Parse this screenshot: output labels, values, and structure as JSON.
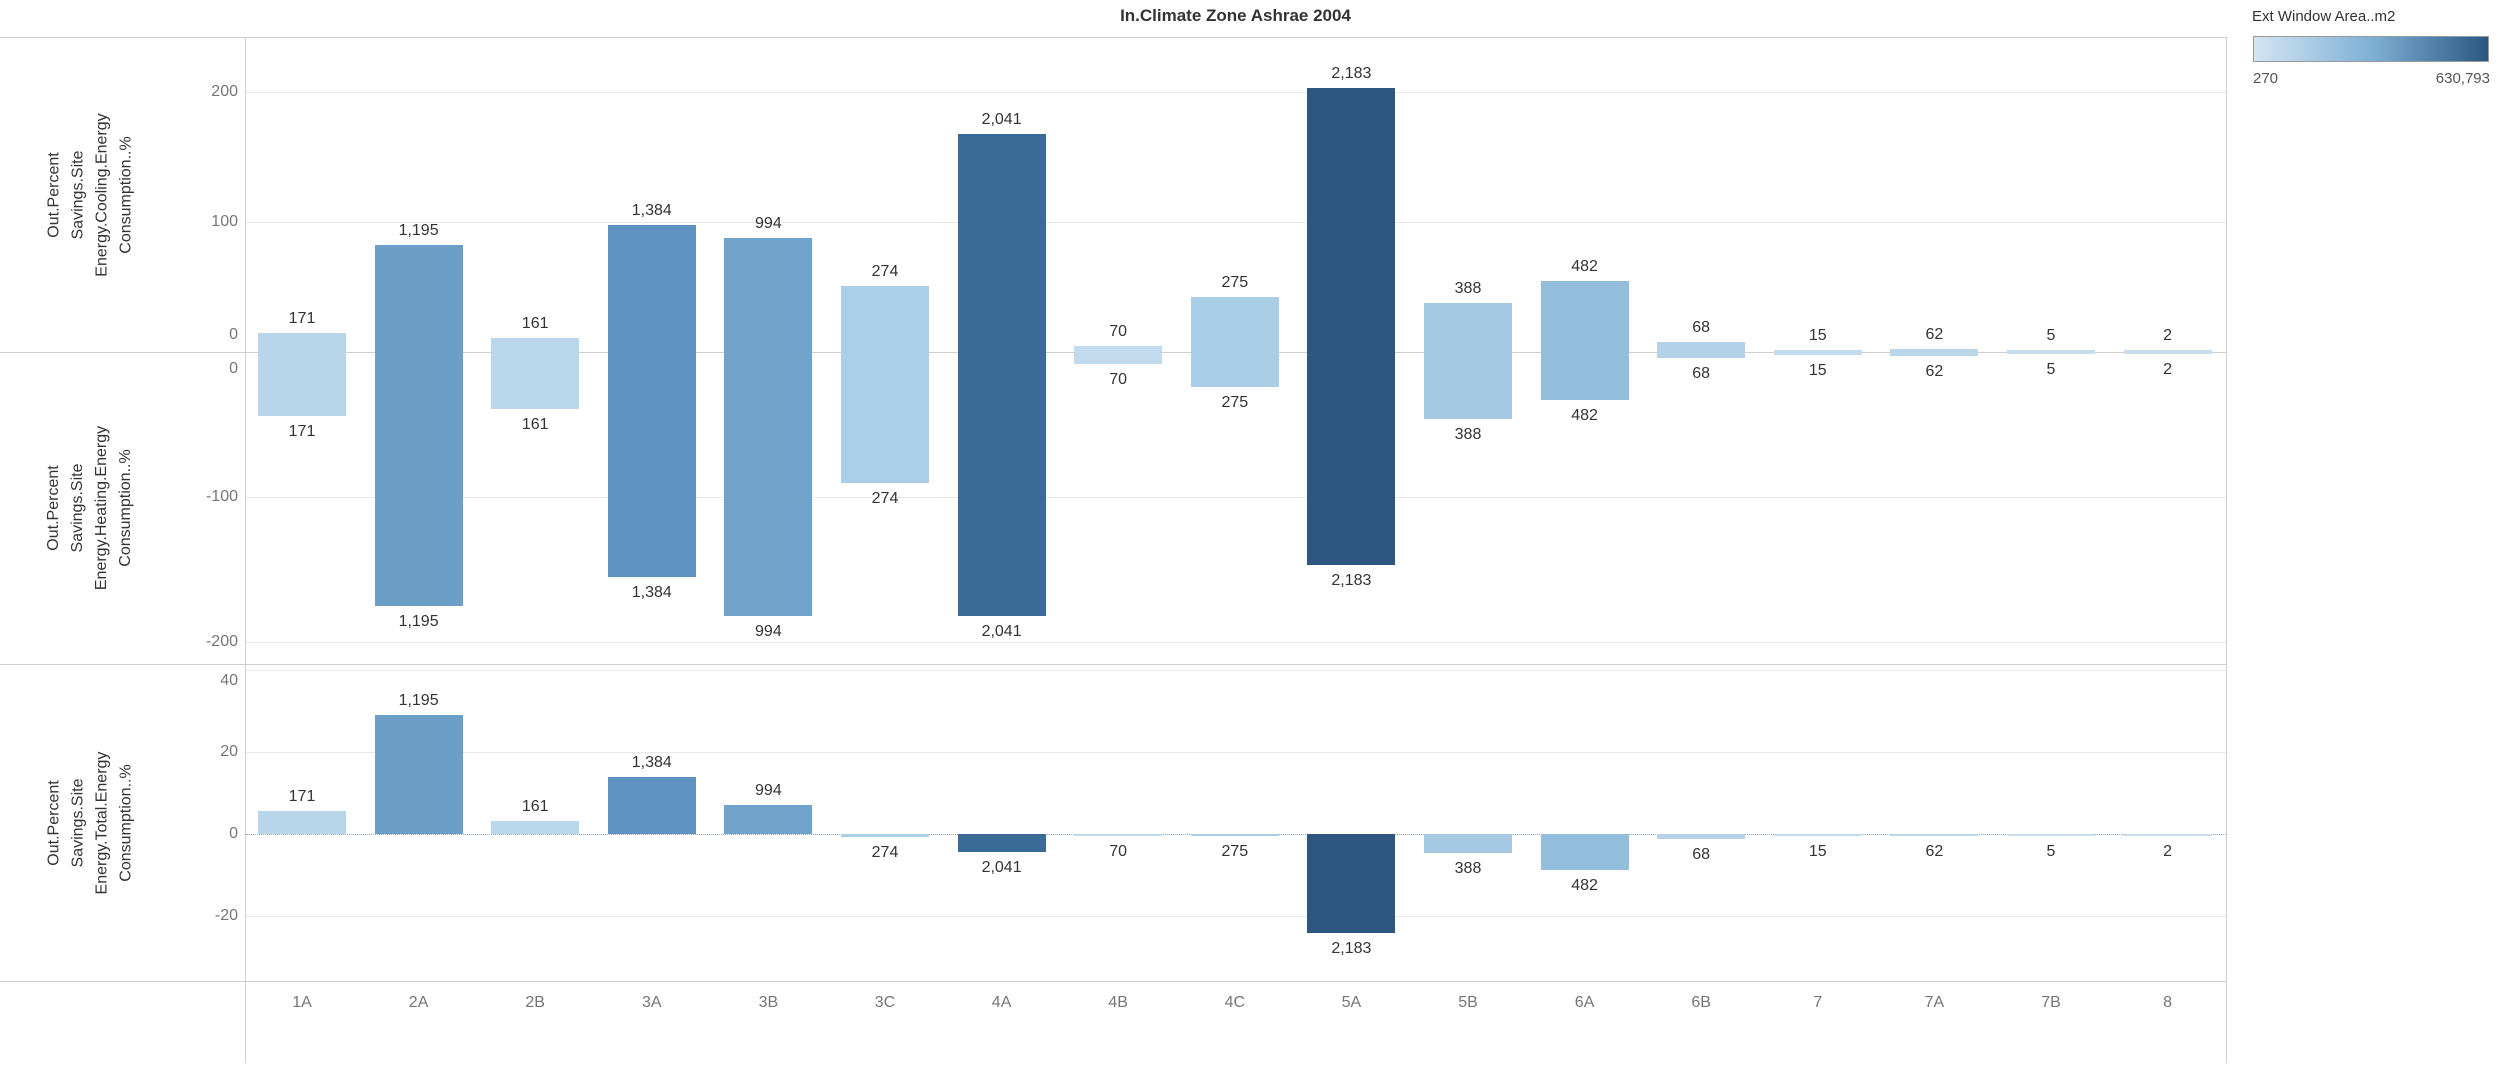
{
  "title": "In.Climate Zone Ashrae 2004",
  "legend": {
    "title": "Ext Window Area..m2",
    "min_label": "270",
    "max_label": "630,793",
    "gradient_start": "#d4e5f2",
    "gradient_end": "#2a5783"
  },
  "chart_data": {
    "type": "bar",
    "categories": [
      "1A",
      "2A",
      "2B",
      "3A",
      "3B",
      "3C",
      "4A",
      "4B",
      "4C",
      "5A",
      "5B",
      "6A",
      "6B",
      "7",
      "7A",
      "7B",
      "8"
    ],
    "bar_labels": [
      "171",
      "1,195",
      "161",
      "1,384",
      "994",
      "274",
      "2,041",
      "70",
      "275",
      "2,183",
      "388",
      "482",
      "68",
      "15",
      "62",
      "5",
      "2"
    ],
    "bar_colors": [
      "#b9d5ea",
      "#6b9fc8",
      "#bad6eb",
      "#5e92c0",
      "#6fa3cb",
      "#abcfe6",
      "#3a6b97",
      "#c2daee",
      "#aacee5",
      "#2d5781",
      "#a5c9e3",
      "#93bedb",
      "#b5d2e8",
      "#c3dbee",
      "#bcd6ea",
      "#c6ddf0",
      "#c8def0"
    ],
    "grid": true,
    "legend_position": "top-right",
    "series": [
      {
        "name": "Out.Percent Savings.Site Energy.Cooling.Energy Consumption..%",
        "axis_title_lines": [
          "Out.Percent",
          "Savings.Site",
          "Energy.Cooling.Energy",
          "Consumption..%"
        ],
        "ylim": [
          -16,
          242
        ],
        "ticks": [
          {
            "v": 200,
            "label": "200"
          },
          {
            "v": 100,
            "label": "100"
          },
          {
            "v": 0,
            "label": "0"
          }
        ],
        "values": [
          15,
          82,
          11,
          98,
          88,
          51,
          168,
          5,
          42,
          203,
          38,
          55,
          8,
          1.5,
          2.5,
          1,
          0.8
        ]
      },
      {
        "name": "Out.Percent Savings.Site Energy.Heating.Energy Consumption..%",
        "axis_title_lines": [
          "Out.Percent",
          "Savings.Site",
          "Energy.Heating.Energy",
          "Consumption..%"
        ],
        "ylim": [
          -215,
          0
        ],
        "ticks": [
          {
            "v": 0,
            "label": "0"
          },
          {
            "v": -100,
            "label": "-100"
          },
          {
            "v": -200,
            "label": "-200"
          }
        ],
        "values": [
          -44,
          -175,
          -39,
          -155,
          -182,
          -90,
          -182,
          -8,
          -24,
          -147,
          -46,
          -33,
          -4,
          -2,
          -2.5,
          -1.5,
          -1.5
        ]
      },
      {
        "name": "Out.Percent Savings.Site Energy.Total.Energy Consumption..%",
        "axis_title_lines": [
          "Out.Percent",
          "Savings.Site",
          "Energy.Total.Energy",
          "Consumption..%"
        ],
        "ylim": [
          -29,
          41
        ],
        "ticks": [
          {
            "v": 40,
            "label": "40"
          },
          {
            "v": 20,
            "label": "20"
          },
          {
            "v": 0,
            "label": "0"
          },
          {
            "v": -20,
            "label": "-20"
          }
        ],
        "values": [
          5.7,
          29,
          3.2,
          14,
          7.1,
          -0.7,
          -4.3,
          -0.4,
          -0.4,
          -24.2,
          -4.6,
          -8.8,
          -1.1,
          -0.3,
          -0.5,
          -0.2,
          -0.2
        ]
      }
    ]
  }
}
